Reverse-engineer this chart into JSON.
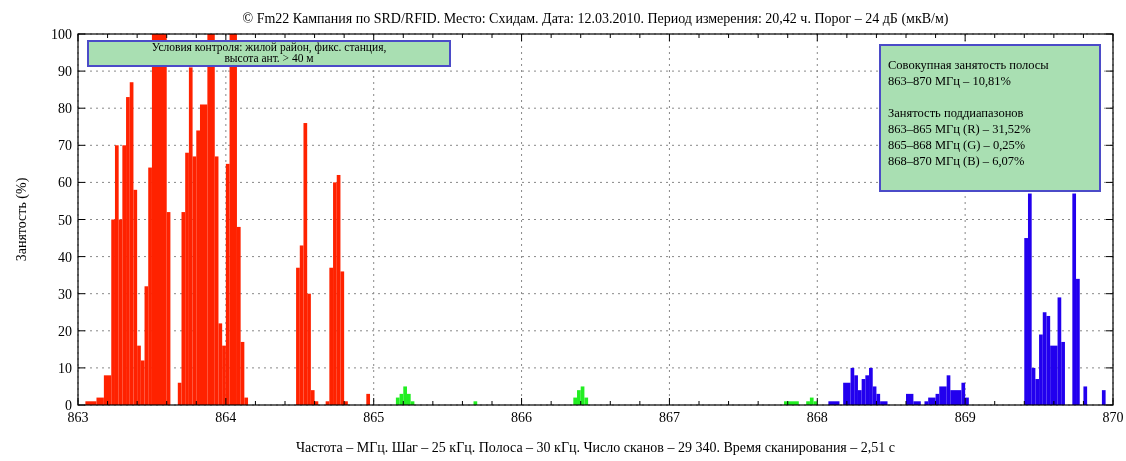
{
  "chart_data": {
    "type": "histogram",
    "title": "© Fm22 Кампания по SRD/RFID. Место: Схидам. Дата: 12.03.2010. Период измерения: 20,42 ч. Порог – 24 дБ (мкВ/м)",
    "xlabel": "Частота – МГц. Шаг – 25 кГц. Полоса – 30 кГц. Число сканов – 29 340. Время сканирования – 2,51 с",
    "ylabel": "Занятость (%)",
    "bins": [
      863.05,
      863.125,
      863.175,
      863.225,
      863.25,
      863.275,
      863.3,
      863.325,
      863.35,
      863.375,
      863.4,
      863.425,
      863.45,
      863.475,
      863.5,
      863.6,
      863.625,
      863.675,
      863.7,
      863.725,
      863.75,
      863.775,
      863.8,
      863.825,
      863.875,
      863.925,
      863.95,
      863.975,
      864,
      864.025,
      864.075,
      864.1,
      864.125,
      864.15,
      864.475,
      864.5,
      864.525,
      864.55,
      864.575,
      864.6,
      864.625,
      864.675,
      864.7,
      864.725,
      864.75,
      864.775,
      864.8,
      864.825,
      864.95,
      864.975,
      865.15,
      865.175,
      865.2,
      865.225,
      865.25,
      865.275,
      865.675,
      865.7,
      866.35,
      866.375,
      866.4,
      866.425,
      866.45,
      867.775,
      867.875,
      867.925,
      867.95,
      867.975,
      868,
      868.075,
      868.15,
      868.175,
      868.225,
      868.25,
      868.275,
      868.3,
      868.325,
      868.35,
      868.375,
      868.4,
      868.425,
      868.475,
      868.6,
      868.65,
      868.7,
      868.725,
      868.75,
      868.8,
      868.825,
      868.875,
      868.9,
      868.975,
      869,
      869.025,
      869.4,
      869.425,
      869.45,
      869.475,
      869.5,
      869.525,
      869.55,
      869.575,
      869.625,
      869.65,
      869.675,
      869.725,
      869.75,
      869.775,
      869.8,
      869.825,
      869.925,
      869.95
    ],
    "values": [
      1,
      2,
      8,
      50,
      70,
      50,
      70,
      83,
      87,
      58,
      16,
      12,
      32,
      64,
      100,
      52,
      0,
      6,
      52,
      68,
      91,
      67,
      74,
      81,
      100,
      67,
      22,
      16,
      65,
      100,
      48,
      17,
      2,
      0,
      37,
      43,
      76,
      30,
      4,
      1,
      0,
      1,
      37,
      60,
      62,
      36,
      1,
      0,
      3,
      0,
      2,
      3,
      5,
      3,
      1,
      0,
      1,
      0,
      2,
      4,
      5,
      2,
      0,
      1,
      0,
      1,
      2,
      1,
      0,
      1,
      0,
      6,
      10,
      8,
      4,
      7,
      8,
      10,
      5,
      3,
      1,
      0,
      3,
      1,
      0,
      1,
      2,
      3,
      5,
      8,
      4,
      6,
      2,
      0,
      45,
      57,
      10,
      7,
      19,
      25,
      24,
      16,
      29,
      17,
      0,
      57,
      34,
      0,
      5,
      0,
      4
    ],
    "colors": [
      "#ff2200",
      "#ff2200",
      "#ff2200",
      "#ff2200",
      "#ff2200",
      "#ff2200",
      "#ff2200",
      "#ff2200",
      "#ff2200",
      "#ff2200",
      "#ff2200",
      "#ff2200",
      "#ff2200",
      "#ff2200",
      "#ff2200",
      "#ff2200",
      "#ff2200",
      "#ff2200",
      "#ff2200",
      "#ff2200",
      "#ff2200",
      "#ff2200",
      "#ff2200",
      "#ff2200",
      "#ff2200",
      "#ff2200",
      "#ff2200",
      "#ff2200",
      "#ff2200",
      "#ff2200",
      "#ff2200",
      "#ff2200",
      "#ff2200",
      "#ff2200",
      "#ff2200",
      "#ff2200",
      "#ff2200",
      "#ff2200",
      "#ff2200",
      "#ff2200",
      "#ff2200",
      "#ff2200",
      "#ff2200",
      "#ff2200",
      "#ff2200",
      "#ff2200",
      "#ff2200",
      "#ff2200",
      "#ff2200",
      "#22ee22",
      "#22ee22",
      "#22ee22",
      "#22ee22",
      "#22ee22",
      "#22ee22",
      "#22ee22",
      "#22ee22",
      "#22ee22",
      "#22ee22",
      "#22ee22",
      "#22ee22",
      "#22ee22",
      "#22ee22",
      "#22ee22",
      "#22ee22",
      "#22ee22",
      "#22ee22",
      "#22ee22",
      "#2200ee",
      "#2200ee",
      "#2200ee",
      "#2200ee",
      "#2200ee",
      "#2200ee",
      "#2200ee",
      "#2200ee",
      "#2200ee",
      "#2200ee",
      "#2200ee",
      "#2200ee",
      "#2200ee",
      "#2200ee",
      "#2200ee",
      "#2200ee",
      "#2200ee",
      "#2200ee",
      "#2200ee",
      "#2200ee",
      "#2200ee",
      "#2200ee",
      "#2200ee",
      "#2200ee",
      "#2200ee",
      "#2200ee",
      "#2200ee",
      "#2200ee",
      "#2200ee",
      "#2200ee",
      "#2200ee",
      "#2200ee",
      "#2200ee",
      "#2200ee",
      "#2200ee",
      "#2200ee",
      "#2200ee",
      "#2200ee",
      "#2200ee",
      "#2200ee",
      "#2200ee",
      "#2200ee",
      "#2200ee"
    ],
    "xlim": [
      863,
      870
    ],
    "xticks": [
      863,
      {
        "value": 863.2,
        "label": null
      },
      {
        "value": 863.4,
        "label": null
      },
      {
        "value": 863.6,
        "label": null
      },
      {
        "value": 863.8,
        "label": null
      },
      864,
      {
        "value": 864.2,
        "label": null
      },
      {
        "value": 864.4,
        "label": null
      },
      {
        "value": 864.6,
        "label": null
      },
      {
        "value": 864.8,
        "label": null
      },
      865,
      {
        "value": 865.2,
        "label": null
      },
      {
        "value": 865.4,
        "label": null
      },
      {
        "value": 865.6,
        "label": null
      },
      {
        "value": 865.8,
        "label": null
      },
      866,
      {
        "value": 866.2,
        "label": null
      },
      {
        "value": 866.4,
        "label": null
      },
      {
        "value": 866.6,
        "label": null
      },
      {
        "value": 866.8,
        "label": null
      },
      867,
      {
        "value": 867.2,
        "label": null
      },
      {
        "value": 867.4,
        "label": null
      },
      {
        "value": 867.6,
        "label": null
      },
      {
        "value": 867.8,
        "label": null
      },
      868,
      {
        "value": 868.2,
        "label": null
      },
      {
        "value": 868.4,
        "label": null
      },
      {
        "value": 868.6,
        "label": null
      },
      {
        "value": 868.8,
        "label": null
      },
      869,
      {
        "value": 869.2,
        "label": null
      },
      {
        "value": 869.4,
        "label": null
      },
      {
        "value": 869.6,
        "label": null
      },
      {
        "value": 869.8,
        "label": null
      },
      870
    ],
    "ylim": [
      0,
      100
    ],
    "yticks": [
      0,
      10,
      20,
      30,
      40,
      50,
      60,
      70,
      80,
      90,
      100
    ],
    "grid": true,
    "annotations": [
      "Условия контроля: жилой район, фикс. станция,\nвысота ант. > 40 м",
      "Совокупная занятость полосы\n863–870 МГц – 10,81%\n\nЗанятость поддиапазонов\n863–865 МГц (R) – 31,52%\n865–868 МГц (G) – 0,25%\n868–870 МГц (B) – 6,07%"
    ]
  }
}
